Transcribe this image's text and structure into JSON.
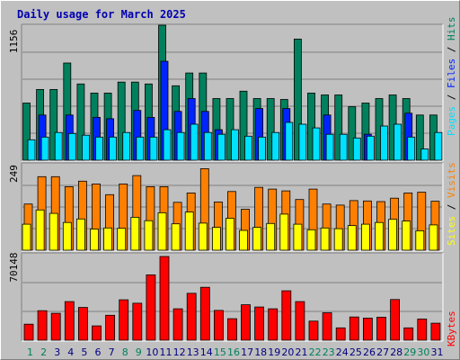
{
  "title": "Daily usage for March 2025",
  "colors": {
    "hits": "#00805c",
    "files": "#0024ff",
    "pages": "#00e0ff",
    "visits": "#ff8000",
    "sites": "#ffff00",
    "kbytes": "#ff0000",
    "weekday": "#000080",
    "weekend": "#00805c",
    "panel_bg": "#c0c0c0",
    "grid": "#808080"
  },
  "legend": {
    "hits_files_pages": [
      "Pages",
      "Files",
      "Hits"
    ],
    "visits_sites": [
      "Sites",
      "Visits"
    ],
    "kbytes": "KBytes"
  },
  "chart_data": {
    "type": "bar",
    "categories": [
      "1",
      "2",
      "3",
      "4",
      "5",
      "6",
      "7",
      "8",
      "9",
      "10",
      "11",
      "12",
      "13",
      "14",
      "15",
      "16",
      "17",
      "18",
      "19",
      "20",
      "21",
      "22",
      "23",
      "24",
      "25",
      "26",
      "27",
      "28",
      "29",
      "30",
      "31"
    ],
    "weekend_days": [
      "1",
      "2",
      "8",
      "9",
      "15",
      "16",
      "22",
      "23",
      "29",
      "30"
    ],
    "panels": [
      {
        "id": "hits_files_pages",
        "ymax_label": "1156",
        "ylim": [
          0,
          1156
        ],
        "series": [
          {
            "name": "Hits",
            "values": [
              489,
              606,
              606,
              832,
              653,
              575,
              575,
              669,
              669,
              653,
              1156,
              637,
              747,
              747,
              528,
              528,
              591,
              528,
              528,
              520,
              1037,
              575,
              559,
              559,
              458,
              489,
              528,
              559,
              528,
              387,
              387
            ]
          },
          {
            "name": "Files",
            "values": [
              0,
              387,
              0,
              387,
              0,
              367,
              355,
              0,
              426,
              367,
              847,
              418,
              528,
              418,
              261,
              0,
              0,
              442,
              0,
              442,
              0,
              0,
              387,
              0,
              0,
              222,
              0,
              0,
              402,
              0,
              0
            ]
          },
          {
            "name": "Pages",
            "values": [
              175,
              198,
              237,
              229,
              214,
              198,
              198,
              237,
              198,
              198,
              261,
              237,
              308,
              237,
              222,
              261,
              206,
              198,
              237,
              324,
              308,
              277,
              222,
              222,
              190,
              206,
              293,
              308,
              198,
              96,
              237
            ]
          }
        ]
      },
      {
        "id": "visits_sites",
        "ymax_label": "249",
        "ylim": [
          0,
          249
        ],
        "series": [
          {
            "name": "Visits",
            "values": [
              133,
              212,
              212,
              183,
              199,
              191,
              160,
              191,
              215,
              183,
              183,
              138,
              165,
              235,
              139,
              169,
              118,
              181,
              176,
              171,
              146,
              176,
              133,
              130,
              143,
              142,
              140,
              150,
              165,
              167,
              141
            ]
          },
          {
            "name": "Sites",
            "values": [
              75,
              116,
              106,
              80,
              90,
              61,
              64,
              63,
              95,
              85,
              108,
              76,
              110,
              78,
              66,
              92,
              57,
              66,
              77,
              104,
              75,
              59,
              64,
              62,
              71,
              75,
              80,
              89,
              84,
              56,
              73
            ]
          }
        ]
      },
      {
        "id": "kbytes",
        "ymax_label": "70148",
        "ylim": [
          0,
          70148
        ],
        "series": [
          {
            "name": "KBytes",
            "values": [
              12982,
              23960,
              21883,
              31344,
              26602,
              11600,
              20270,
              32800,
              30000,
              53070,
              67990,
              25480,
              38070,
              42970,
              24150,
              17470,
              28800,
              26980,
              25480,
              40100,
              31370,
              15470,
              22270,
              10000,
              18820,
              17900,
              18650,
              33000,
              10000,
              17190,
              13840
            ]
          }
        ]
      }
    ]
  }
}
